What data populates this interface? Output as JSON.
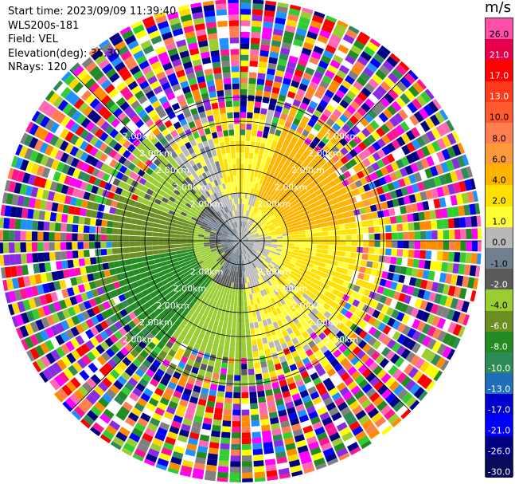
{
  "info": {
    "start_time": "Start time: 2023/09/09 11:39:40",
    "instrument": "WLS200s-181",
    "field": "Field: VEL",
    "elevation": "Elevation(deg): 35.30",
    "nrays": "NRays: 120"
  },
  "colorbar": {
    "unit": "m/s",
    "ticks": [
      "26.0",
      "21.0",
      "17.0",
      "13.0",
      "10.0",
      "8.0",
      "6.0",
      "4.0",
      "2.0",
      "1.0",
      "0.0",
      "-1.0",
      "-2.0",
      "-4.0",
      "-6.0",
      "-8.0",
      "-10.0",
      "-13.0",
      "-17.0",
      "-21.0",
      "-26.0",
      "-30.0"
    ],
    "colors": [
      "#ff4fa8",
      "#e6004a",
      "#ff0000",
      "#ff3a1a",
      "#ff5a30",
      "#ff7f50",
      "#ff9a3c",
      "#ffb400",
      "#ffe000",
      "#ffff33",
      "#b8b8b8",
      "#708090",
      "#5a5a5a",
      "#9acd32",
      "#6b8e23",
      "#228b22",
      "#2e8b57",
      "#1e6fb8",
      "#0000cd",
      "#0000ff",
      "#000080",
      "#0a0a5a"
    ]
  },
  "chart_data": {
    "type": "heatmap",
    "projection": "polar-ppi",
    "field": "VEL",
    "units": "m/s",
    "nrays": 120,
    "range_ring_label": "2.00km",
    "range_rings_km": [
      0.5,
      1.0,
      1.5,
      2.0,
      2.5,
      3.0
    ],
    "color_levels": [
      26.0,
      21.0,
      17.0,
      13.0,
      10.0,
      8.0,
      6.0,
      4.0,
      2.0,
      1.0,
      0.0,
      -1.0,
      -2.0,
      -4.0,
      -6.0,
      -8.0,
      -10.0,
      -13.0,
      -17.0,
      -21.0,
      -26.0,
      -30.0
    ],
    "velocity_sectors": [
      {
        "azimuth_from": 0,
        "azimuth_to": 20,
        "range_to_km": 2.2,
        "velocity": 2.0
      },
      {
        "azimuth_from": 20,
        "azimuth_to": 80,
        "range_to_km": 2.4,
        "velocity": 5.0
      },
      {
        "azimuth_from": 80,
        "azimuth_to": 130,
        "range_to_km": 2.4,
        "velocity": 2.5
      },
      {
        "azimuth_from": 130,
        "azimuth_to": 175,
        "range_to_km": 2.4,
        "velocity": 1.5
      },
      {
        "azimuth_from": 175,
        "azimuth_to": 215,
        "range_to_km": 2.4,
        "velocity": -3.0
      },
      {
        "azimuth_from": 215,
        "azimuth_to": 260,
        "range_to_km": 2.6,
        "velocity": -7.0
      },
      {
        "azimuth_from": 260,
        "azimuth_to": 290,
        "range_to_km": 2.6,
        "velocity": -5.0
      },
      {
        "azimuth_from": 290,
        "azimuth_to": 320,
        "range_to_km": 2.3,
        "velocity": -2.5
      },
      {
        "azimuth_from": 320,
        "azimuth_to": 345,
        "range_to_km": 2.2,
        "velocity": 0.5
      },
      {
        "azimuth_from": 345,
        "azimuth_to": 360,
        "range_to_km": 2.2,
        "velocity": 2.0
      }
    ],
    "center_velocity": 0.0,
    "outer_region": "noise (random colors) beyond the valid-data ranges"
  }
}
